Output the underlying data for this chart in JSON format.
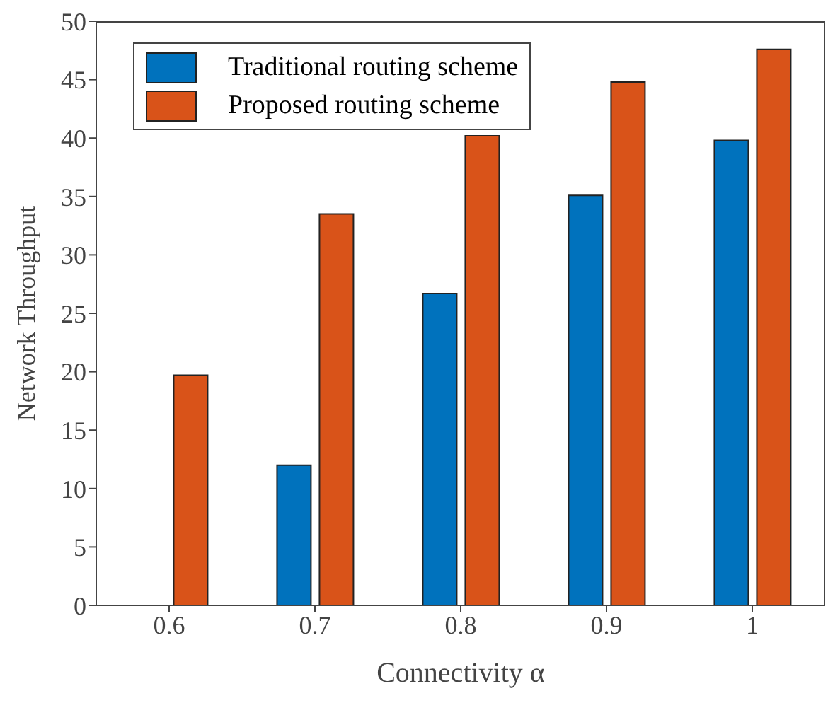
{
  "chart_data": {
    "type": "bar",
    "xlabel": "Connectivity α",
    "ylabel": "Network Throughput",
    "categories": [
      "0.6",
      "0.7",
      "0.8",
      "0.9",
      "1"
    ],
    "series": [
      {
        "name": "Traditional routing scheme",
        "color": "#0072bd",
        "values": [
          0,
          12.0,
          26.7,
          35.1,
          39.8
        ]
      },
      {
        "name": "Proposed routing scheme",
        "color": "#d95319",
        "values": [
          19.7,
          33.5,
          40.2,
          44.8,
          47.6
        ]
      }
    ],
    "ylim": [
      0,
      50
    ],
    "yticks": [
      0,
      5,
      10,
      15,
      20,
      25,
      30,
      35,
      40,
      45,
      50
    ],
    "grid": false,
    "legend": "top left"
  }
}
